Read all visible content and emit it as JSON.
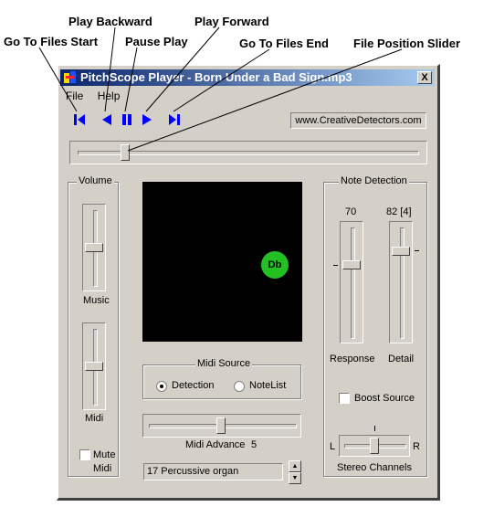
{
  "callouts": {
    "play_backward": "Play Backward",
    "play_forward": "Play Forward",
    "go_to_files_start": "Go To Files Start",
    "pause_play": "Pause Play",
    "go_to_files_end": "Go To Files End",
    "file_position_slider": "File Position Slider"
  },
  "window": {
    "title": "PitchScope Player  -  Born Under a Bad Sign.mp3",
    "close_label": "X"
  },
  "menu": {
    "items": [
      "File",
      "Help"
    ]
  },
  "toolbar": {
    "url": "www.CreativeDetectors.com",
    "icon_color": "#0000ff"
  },
  "file_position": {
    "fraction": 0.14
  },
  "volume": {
    "title": "Volume",
    "music_label": "Music",
    "midi_label": "Midi",
    "mute_label": "Mute",
    "mute_sub_label": "Midi",
    "mute_checked": false
  },
  "display": {
    "note": "Db",
    "note_color": "#22c022"
  },
  "midi_source": {
    "title": "Midi Source",
    "options": [
      "Detection",
      "NoteList"
    ],
    "selected": "Detection"
  },
  "midi_advance": {
    "label": "Midi Advance",
    "value": "5"
  },
  "instrument": {
    "value": "17  Percussive organ"
  },
  "note_detection": {
    "title": "Note Detection",
    "response_value": "70",
    "detail_value": "82 [4]",
    "response_label": "Response",
    "detail_label": "Detail",
    "boost_label": "Boost Source",
    "boost_checked": false
  },
  "stereo": {
    "left": "L",
    "right": "R",
    "label": "Stereo Channels"
  }
}
